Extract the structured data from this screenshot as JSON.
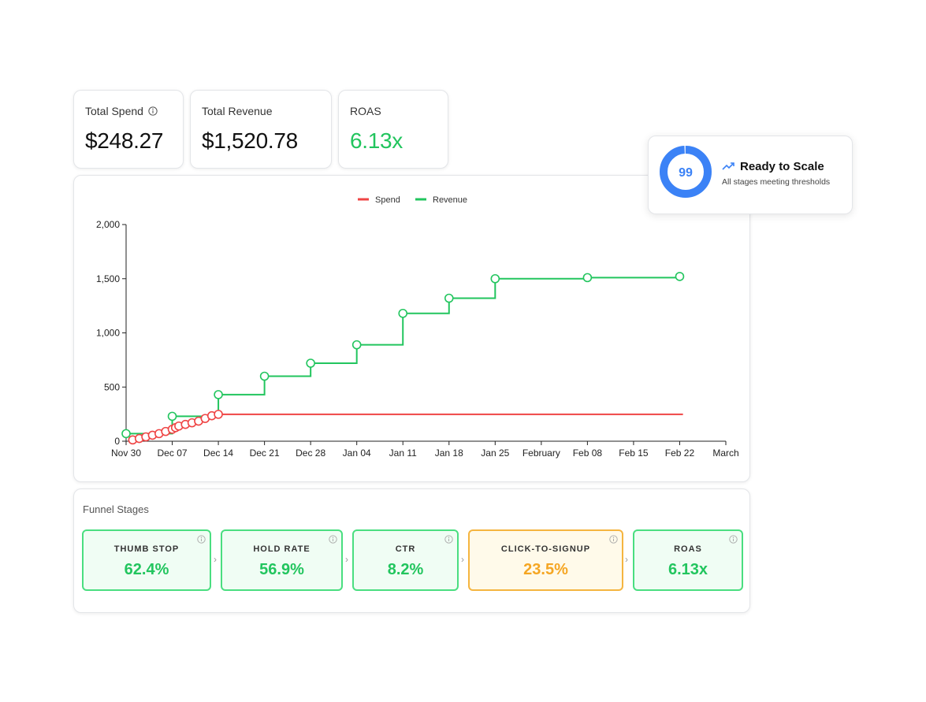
{
  "kpis": {
    "spend": {
      "label": "Total Spend",
      "value": "$248.27",
      "icon": "info-icon"
    },
    "revenue": {
      "label": "Total Revenue",
      "value": "$1,520.78"
    },
    "roas": {
      "label": "ROAS",
      "value": "6.13x",
      "color": "#22c55e"
    }
  },
  "scale": {
    "score": "99",
    "score_fraction": 0.99,
    "title": "Ready to Scale",
    "subtitle": "All stages meeting thresholds",
    "icon": "trending-up-icon",
    "color": "#3b82f6"
  },
  "funnel": {
    "title": "Funnel Stages",
    "stages": [
      {
        "label": "THUMB STOP",
        "value": "62.4%",
        "status": "good"
      },
      {
        "label": "HOLD RATE",
        "value": "56.9%",
        "status": "good"
      },
      {
        "label": "CTR",
        "value": "8.2%",
        "status": "good"
      },
      {
        "label": "CLICK-TO-SIGNUP",
        "value": "23.5%",
        "status": "warn"
      },
      {
        "label": "ROAS",
        "value": "6.13x",
        "status": "good"
      }
    ]
  },
  "chart_data": {
    "type": "line",
    "title": "",
    "xlabel": "",
    "ylabel": "",
    "ylim": [
      0,
      2000
    ],
    "yticks": [
      0,
      500,
      1000,
      1500,
      2000
    ],
    "ytick_labels": [
      "0",
      "500",
      "1,000",
      "1,500",
      "2,000"
    ],
    "xlim_days": [
      0,
      91
    ],
    "xticks": [
      {
        "day": 0,
        "label": "Nov 30"
      },
      {
        "day": 7,
        "label": "Dec 07"
      },
      {
        "day": 14,
        "label": "Dec 14"
      },
      {
        "day": 21,
        "label": "Dec 21"
      },
      {
        "day": 28,
        "label": "Dec 28"
      },
      {
        "day": 35,
        "label": "Jan 04"
      },
      {
        "day": 42,
        "label": "Jan 11"
      },
      {
        "day": 49,
        "label": "Jan 18"
      },
      {
        "day": 56,
        "label": "Jan 25"
      },
      {
        "day": 63,
        "label": "February"
      },
      {
        "day": 70,
        "label": "Feb 08"
      },
      {
        "day": 77,
        "label": "Feb 15"
      },
      {
        "day": 84,
        "label": "Feb 22"
      },
      {
        "day": 91,
        "label": "March"
      }
    ],
    "legend": "top",
    "series": [
      {
        "name": "Spend",
        "color": "#ef4444",
        "step": "after",
        "points": [
          [
            1,
            12
          ],
          [
            2,
            25
          ],
          [
            3,
            40
          ],
          [
            4,
            55
          ],
          [
            5,
            70
          ],
          [
            6,
            90
          ],
          [
            7,
            110
          ],
          [
            7.5,
            125
          ],
          [
            8,
            140
          ],
          [
            9,
            155
          ],
          [
            10,
            170
          ],
          [
            11,
            185
          ],
          [
            12,
            210
          ],
          [
            13,
            235
          ],
          [
            14,
            248.27
          ]
        ],
        "extend_to": 84.5
      },
      {
        "name": "Revenue",
        "color": "#22c55e",
        "step": "after",
        "points": [
          [
            0,
            70
          ],
          [
            7,
            230
          ],
          [
            14,
            430
          ],
          [
            21,
            600
          ],
          [
            28,
            720
          ],
          [
            35,
            890
          ],
          [
            42,
            1180
          ],
          [
            49,
            1320
          ],
          [
            56,
            1500
          ],
          [
            70,
            1510
          ],
          [
            84,
            1520.78
          ]
        ]
      }
    ]
  }
}
